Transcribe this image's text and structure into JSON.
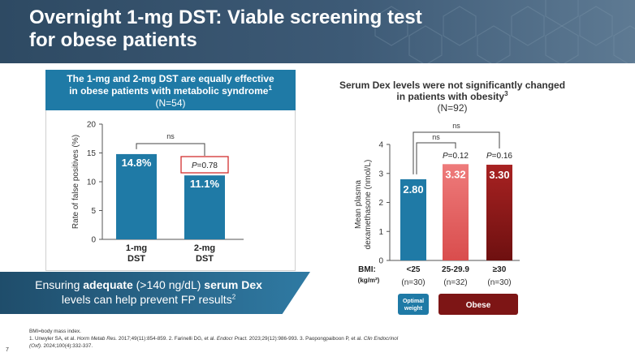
{
  "title": {
    "line1": "Overnight 1-mg DST: Viable screening test",
    "line2": "for obese patients"
  },
  "left_panel": {
    "header_line1": "The 1-mg and 2-mg DST are equally effective",
    "header_line2": "in obese patients with metabolic syndrome",
    "header_sup": "1",
    "header_n": "(N=54)"
  },
  "right_panel": {
    "title_line1": "Serum Dex levels were not significantly changed",
    "title_line2": "in patients with obesity",
    "title_sup": "3",
    "n": "(N=92)",
    "bmi_label": "BMI:",
    "bmi_unit": "(kg/m²)",
    "optimal_line1": "Optimal",
    "optimal_line2": "weight",
    "obese_label": "Obese"
  },
  "banner": {
    "pre": "Ensuring ",
    "bold1": "adequate",
    "mid": " (>140 ng/dL) ",
    "bold2": "serum Dex",
    "line2": "levels can help prevent FP results",
    "sup": "2"
  },
  "footer": {
    "abbr": "BMI=body mass index.",
    "ref_a": "1. Unwyler SA, et al. ",
    "ref_a_j": "Horm Metab Res.",
    "ref_b": " 2017;49(11):854-859. 2. Farinelli DG, et al. ",
    "ref_b_j": "Endocr Pract.",
    "ref_c": " 2023;29(12):986-993. 3. Paopongpaiboon P, et al. ",
    "ref_c_j": "Clin Endocrinol",
    "ref_d_j": "(Oxf).",
    "ref_d": " 2024;100(4):332-337.",
    "page": "7"
  },
  "colors": {
    "teal": "#1f7aa6",
    "salmon": "#e06565",
    "darkred": "#8b1a1a",
    "header": "#3d5a76"
  },
  "chart_data": [
    {
      "type": "bar",
      "title": "The 1-mg and 2-mg DST are equally effective in obese patients with metabolic syndrome",
      "ylabel": "Rate of false positives (%)",
      "ylim": [
        0,
        20
      ],
      "yticks": [
        0,
        5,
        10,
        15,
        20
      ],
      "categories": [
        [
          "1-mg",
          "DST"
        ],
        [
          "2-mg",
          "DST"
        ]
      ],
      "values": [
        14.8,
        11.1
      ],
      "value_labels": [
        "14.8%",
        "11.1%"
      ],
      "annotations": {
        "significance": "ns",
        "p_value_prefix": "P",
        "p_value_rest": "=0.78"
      }
    },
    {
      "type": "bar",
      "title": "Serum Dex levels were not significantly changed in patients with obesity",
      "ylabel_line1": "Mean plasma",
      "ylabel_line2": "dexamethasone (nmol/L)",
      "ylim": [
        0,
        4
      ],
      "yticks": [
        0,
        1,
        2,
        3,
        4
      ],
      "categories": [
        "<25",
        "25-29.9",
        "≥30"
      ],
      "n_labels": [
        "(n=30)",
        "(n=32)",
        "(n=30)"
      ],
      "values": [
        2.8,
        3.32,
        3.3
      ],
      "value_labels": [
        "2.80",
        "3.32",
        "3.30"
      ],
      "annotations": {
        "ns_outer": "ns",
        "ns_inner": "ns",
        "p_prefix": "P",
        "p1_rest": "=0.12",
        "p2_rest": "=0.16"
      }
    }
  ]
}
